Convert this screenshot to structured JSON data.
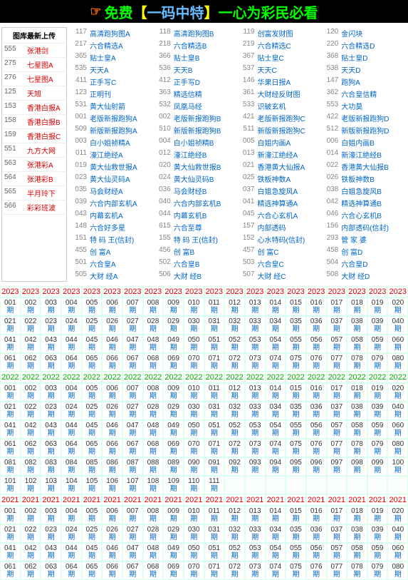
{
  "banner": {
    "t1": "免费",
    "t2": "【",
    "t3": "一码中特",
    "t4": "】",
    "t5": "一心为彩民必看"
  },
  "sbHead": "图库最新上传",
  "sb": [
    {
      "n": "555",
      "t": "张港剑"
    },
    {
      "n": "275",
      "t": "七星图A"
    },
    {
      "n": "276",
      "t": "七星图A"
    },
    {
      "n": "125",
      "t": "天旭"
    },
    {
      "n": "153",
      "t": "香港白报A"
    },
    {
      "n": "158",
      "t": "香港白报B"
    },
    {
      "n": "159",
      "t": "香港白报C"
    },
    {
      "n": "551",
      "t": "九方大网"
    },
    {
      "n": "563",
      "t": "张港彩A"
    },
    {
      "n": "564",
      "t": "张港彩B"
    },
    {
      "n": "565",
      "t": "半月玲下"
    },
    {
      "n": "566",
      "t": "彩彩班波"
    }
  ],
  "grid": [
    [
      {
        "n": "117",
        "t": "高清跑狗图A"
      },
      {
        "n": "118",
        "t": "高清跑狗图B"
      },
      {
        "n": "119",
        "t": "创富发财图"
      },
      {
        "n": "120",
        "t": "金闪块"
      }
    ],
    [
      {
        "n": "217",
        "t": "六合精选A"
      },
      {
        "n": "218",
        "t": "六合精选B"
      },
      {
        "n": "219",
        "t": "六合精选C"
      },
      {
        "n": "220",
        "t": "六合精选D"
      }
    ],
    [
      {
        "n": "365",
        "t": "贴士皇A"
      },
      {
        "n": "366",
        "t": "贴士皇B"
      },
      {
        "n": "367",
        "t": "贴士皇C"
      },
      {
        "n": "368",
        "t": "贴士皇D"
      }
    ],
    [
      {
        "n": "535",
        "t": "天天A"
      },
      {
        "n": "536",
        "t": "天天B"
      },
      {
        "n": "537",
        "t": "天天C"
      },
      {
        "n": "538",
        "t": "天天D"
      }
    ],
    [
      {
        "n": "411",
        "t": "正手写C"
      },
      {
        "n": "412",
        "t": "正手写D"
      },
      {
        "n": "146",
        "t": "华果日报A"
      },
      {
        "n": "147",
        "t": "跑狗A"
      }
    ],
    [
      {
        "n": "123",
        "t": "正明刊"
      },
      {
        "n": "363",
        "t": "精选信精"
      },
      {
        "n": "361",
        "t": "大财经反财图"
      },
      {
        "n": "362",
        "t": "六合皇信精"
      }
    ],
    [
      {
        "n": "531",
        "t": "黄大仙射箭"
      },
      {
        "n": "532",
        "t": "凤凰马经"
      },
      {
        "n": "533",
        "t": "识破玄机"
      },
      {
        "n": "553",
        "t": "大功莫"
      }
    ],
    [
      {
        "n": "001",
        "t": "老版新报跑狗A"
      },
      {
        "n": "002",
        "t": "老版新报跑狗B"
      },
      {
        "n": "421",
        "t": "老版新报跑狗C"
      },
      {
        "n": "422",
        "t": "老版新报跑狗D"
      }
    ],
    [
      {
        "n": "509",
        "t": "新版新报跑狗A"
      },
      {
        "n": "510",
        "t": "新版新报跑狗B"
      },
      {
        "n": "511",
        "t": "新版新报跑狗C"
      },
      {
        "n": "512",
        "t": "新版新报跑狗D"
      }
    ],
    [
      {
        "n": "003",
        "t": "白小姐祯精A"
      },
      {
        "n": "004",
        "t": "白小姐祯精B"
      },
      {
        "n": "005",
        "t": "白姐内画A"
      },
      {
        "n": "006",
        "t": "白姐内画B"
      }
    ],
    [
      {
        "n": "011",
        "t": "濠江绝经A"
      },
      {
        "n": "012",
        "t": "濠江绝经B"
      },
      {
        "n": "013",
        "t": "新濠江绝经A"
      },
      {
        "n": "014",
        "t": "新濠江绝经B"
      }
    ],
    [
      {
        "n": "019",
        "t": "黄大仙救世报A"
      },
      {
        "n": "020",
        "t": "黄大仙救世报B"
      },
      {
        "n": "021",
        "t": "香港黄大仙报A"
      },
      {
        "n": "022",
        "t": "香港黄大仙报B"
      }
    ],
    [
      {
        "n": "023",
        "t": "黄大仙灵码A"
      },
      {
        "n": "024",
        "t": "黄大仙灵码B"
      },
      {
        "n": "025",
        "t": "铁板神数A"
      },
      {
        "n": "026",
        "t": "铁板神数B"
      }
    ],
    [
      {
        "n": "035",
        "t": "马会财经A"
      },
      {
        "n": "036",
        "t": "马会财经B"
      },
      {
        "n": "037",
        "t": "白姐急旋风A"
      },
      {
        "n": "038",
        "t": "白姐急旋风B"
      }
    ],
    [
      {
        "n": "039",
        "t": "六合内部玄机A"
      },
      {
        "n": "040",
        "t": "六合内部玄机B"
      },
      {
        "n": "041",
        "t": "精选神算通A"
      },
      {
        "n": "042",
        "t": "精选神算通B"
      }
    ],
    [
      {
        "n": "043",
        "t": "内幕玄机A"
      },
      {
        "n": "044",
        "t": "内幕玄机B"
      },
      {
        "n": "045",
        "t": "六合心玄机A"
      },
      {
        "n": "046",
        "t": "六合心玄机B"
      }
    ],
    [
      {
        "n": "148",
        "t": "六合好多星"
      },
      {
        "n": "615",
        "t": "六合至尊"
      },
      {
        "n": "157",
        "t": "内部透码"
      },
      {
        "n": "156",
        "t": "内部透码(信封)"
      }
    ],
    [
      {
        "n": "151",
        "t": "特 码 王(信封)"
      },
      {
        "n": "155",
        "t": "特 码 王(信封)"
      },
      {
        "n": "152",
        "t": "心水特码(信封)"
      },
      {
        "n": "293",
        "t": "管 家 婆"
      }
    ],
    [
      {
        "n": "455",
        "t": "创 富A"
      },
      {
        "n": "456",
        "t": "创 富B"
      },
      {
        "n": "457",
        "t": "创 富C"
      },
      {
        "n": "458",
        "t": "创 富D"
      }
    ],
    [
      {
        "n": "501",
        "t": "六合皇A"
      },
      {
        "n": "502",
        "t": "六合皇B"
      },
      {
        "n": "503",
        "t": "六合皇C"
      },
      {
        "n": "504",
        "t": "六合皇D"
      }
    ],
    [
      {
        "n": "505",
        "t": "大财 经A"
      },
      {
        "n": "506",
        "t": "大财 经B"
      },
      {
        "n": "507",
        "t": "大财 经C"
      },
      {
        "n": "508",
        "t": "大财 经D"
      }
    ]
  ],
  "years": {
    "y23": "2023",
    "y22": "2022",
    "y21": "2021"
  },
  "qi": "期",
  "blocks": [
    {
      "year": "y23",
      "rows": 4,
      "start": 1,
      "cols": 20,
      "total": 80
    },
    {
      "year": "y22",
      "rows": 6,
      "start": 1,
      "cols": 20,
      "total": 111,
      "lastPartial": 11
    },
    {
      "year": "y21",
      "rows": 4,
      "start": 1,
      "cols": 20,
      "total": 80,
      "incomplete": true
    }
  ],
  "colors": {
    "y23": "#d00",
    "y22": "#0a0",
    "y21": "#d00",
    "border": "#dfe",
    "link": "#06c"
  }
}
